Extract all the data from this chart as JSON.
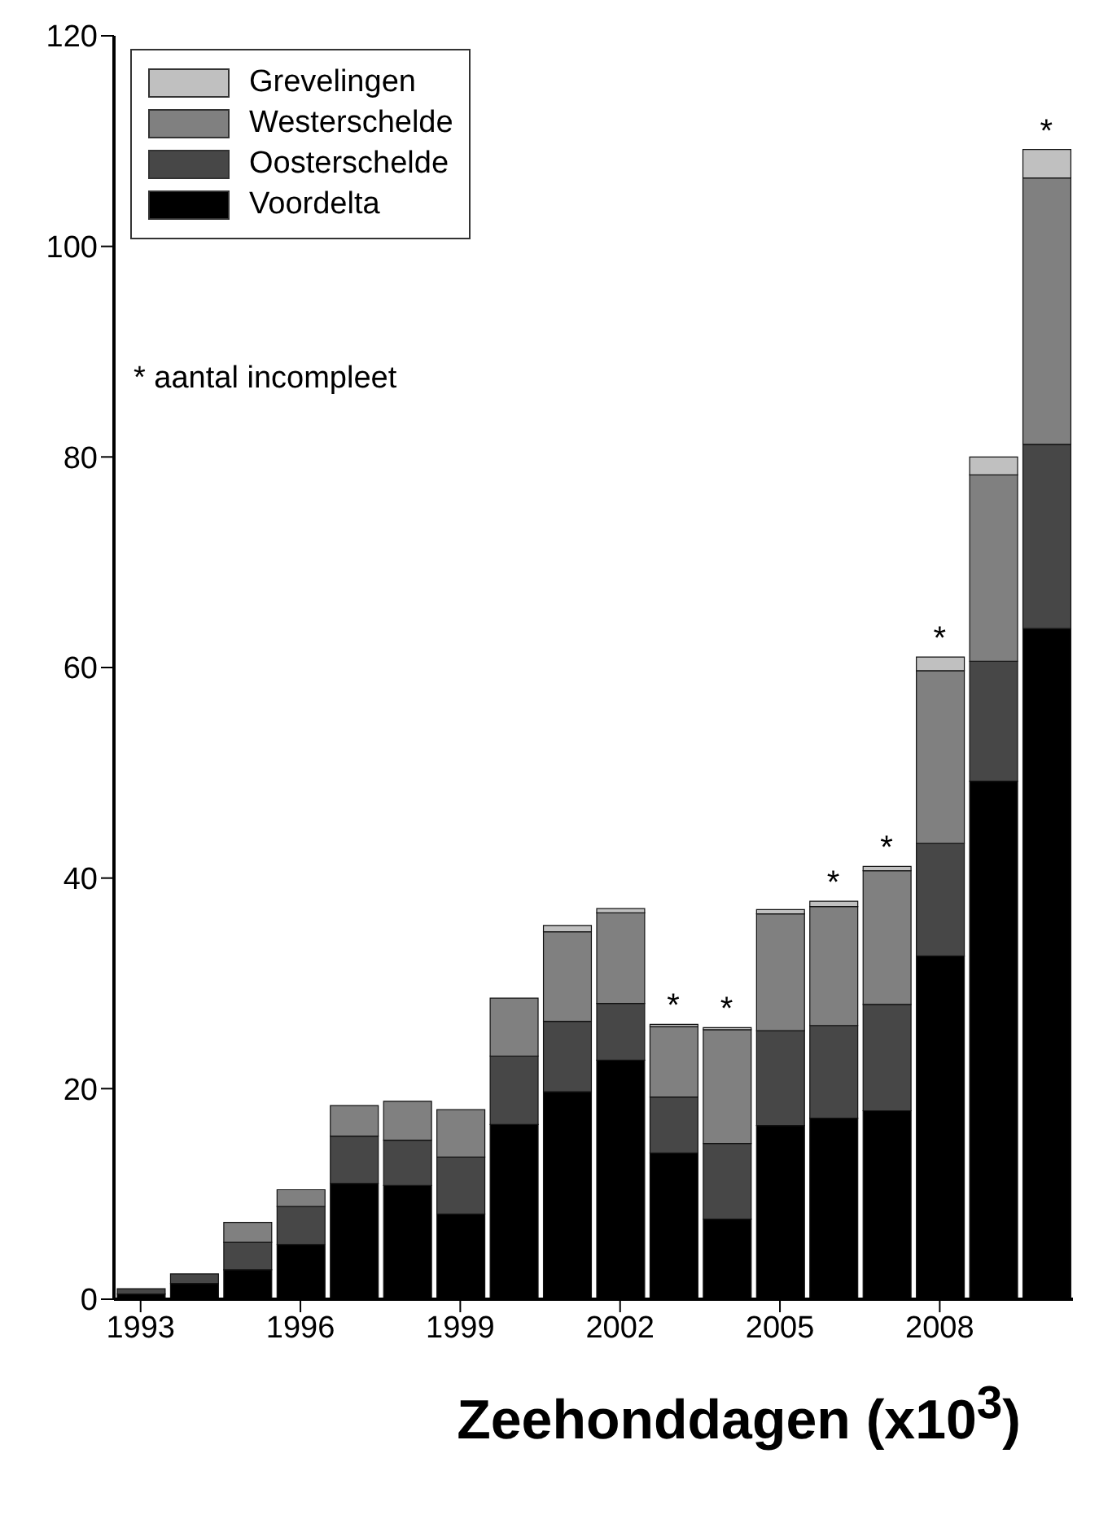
{
  "chart_data": {
    "type": "bar",
    "stacked": true,
    "xlabel": "Zeehonddagen (x10$^{3}$)",
    "x": [
      1993,
      1994,
      1995,
      1996,
      1997,
      1998,
      1999,
      2000,
      2001,
      2002,
      2003,
      2004,
      2005,
      2006,
      2007,
      2008,
      2009,
      2010
    ],
    "xlim": [
      1992.5,
      2010.5
    ],
    "xticks": [
      1993,
      1996,
      1999,
      2002,
      2005,
      2008
    ],
    "ylim": [
      0,
      120
    ],
    "yticks": [
      0,
      20,
      40,
      60,
      80,
      100,
      120
    ],
    "series": [
      {
        "name": "Voordelta",
        "color": "#000000",
        "values": [
          0.5,
          1.5,
          2.8,
          5.2,
          11.0,
          10.8,
          8.1,
          16.6,
          19.7,
          22.7,
          13.9,
          7.6,
          16.5,
          17.2,
          17.9,
          32.6,
          49.2,
          63.7
        ]
      },
      {
        "name": "Oosterschelde",
        "color": "#474747",
        "values": [
          0.5,
          0.9,
          2.6,
          3.6,
          4.5,
          4.3,
          5.4,
          6.5,
          6.7,
          5.4,
          5.3,
          7.2,
          9.0,
          8.8,
          10.1,
          10.7,
          11.4,
          17.5
        ]
      },
      {
        "name": "Westerschelde",
        "color": "#808080",
        "values": [
          0,
          0,
          1.9,
          1.6,
          2.9,
          3.7,
          4.5,
          5.5,
          8.5,
          8.6,
          6.7,
          10.8,
          11.1,
          11.3,
          12.7,
          16.4,
          17.7,
          25.3
        ]
      },
      {
        "name": "Grevelingen",
        "color": "#c0c0c0",
        "values": [
          0,
          0,
          0,
          0,
          0,
          0,
          0,
          0,
          0.6,
          0.4,
          0.2,
          0.2,
          0.4,
          0.5,
          0.4,
          1.3,
          1.7,
          2.7
        ]
      }
    ],
    "annotations": [
      "* aantal incompleet",
      {
        "text": "*",
        "x": 2003,
        "y": 26.1
      },
      {
        "text": "*",
        "x": 2004,
        "y": 25.8
      },
      {
        "text": "*",
        "x": 2006,
        "y": 37.8
      },
      {
        "text": "*",
        "x": 2007,
        "y": 41.1
      },
      {
        "text": "*",
        "x": 2008,
        "y": 61.0
      },
      {
        "text": "*",
        "x": 2010,
        "y": 109.2
      }
    ],
    "legend": "top left",
    "grid": false
  }
}
